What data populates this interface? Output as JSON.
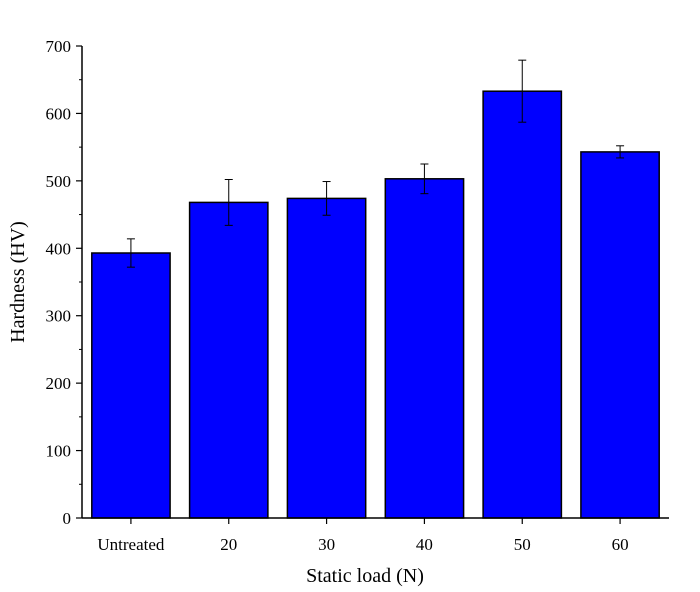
{
  "chart_data": {
    "type": "bar",
    "title": "",
    "xlabel": "Static load (N)",
    "ylabel": "Hardness (HV)",
    "categories": [
      "Untreated",
      "20",
      "30",
      "40",
      "50",
      "60"
    ],
    "values": [
      393,
      468,
      474,
      503,
      633,
      543
    ],
    "errors": [
      21,
      34,
      25,
      22,
      46,
      9
    ],
    "ylim": [
      0,
      700
    ],
    "yticks": [
      0,
      100,
      200,
      300,
      400,
      500,
      600,
      700
    ],
    "ytick_labels": [
      "0",
      "100",
      "200",
      "300",
      "400",
      "500",
      "600",
      "700"
    ],
    "grid": false,
    "legend": "none",
    "colors": {
      "bar_fill": "#0000FF",
      "bar_stroke": "#000000",
      "error_bar": "#000000",
      "axis": "#000000"
    }
  }
}
